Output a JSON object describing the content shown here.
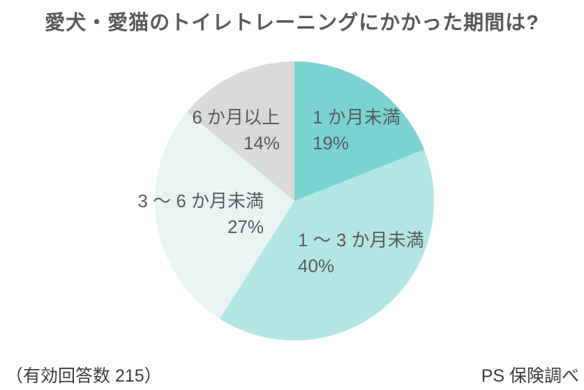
{
  "title": "愛犬・愛猫のトイレトレーニングにかかった期間は?",
  "footer": {
    "sample_note": "（有効回答数 215）",
    "source_note": "PS 保険調べ"
  },
  "chart_data": {
    "type": "pie",
    "title": "愛犬・愛猫のトイレトレーニングにかかった期間は?",
    "categories": [
      "1 か月未満",
      "1 ～ 3 か月未満",
      "3 ～ 6 か月未満",
      "6 か月以上"
    ],
    "values": [
      19,
      40,
      27,
      14
    ],
    "percent_labels": [
      "19%",
      "40%",
      "27%",
      "14%"
    ],
    "colors": [
      "#7ad2d3",
      "#b2e6e3",
      "#e9f5f3",
      "#dadada"
    ],
    "unit": "%",
    "start_angle_deg": 0,
    "direction": "clockwise",
    "legend": "none",
    "label_text_color": "#575b5e"
  }
}
